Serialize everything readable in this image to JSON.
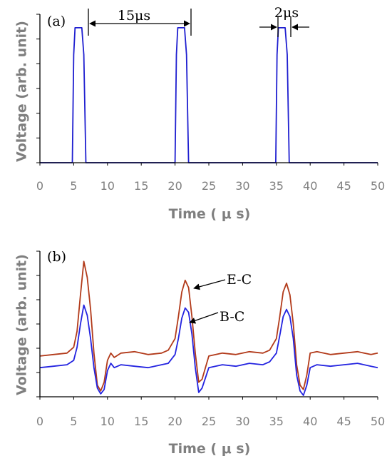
{
  "chart_data": [
    {
      "type": "line",
      "panel_label": "(a)",
      "xlabel": "Time ( μ s)",
      "ylabel": "Voltage (arb. unit)",
      "xlim": [
        0,
        50
      ],
      "xticks": [
        "0",
        "5",
        "10",
        "15",
        "20",
        "25",
        "30",
        "35",
        "40",
        "45",
        "50"
      ],
      "ylim": [
        0,
        1.1
      ],
      "y_tick_labels_shown": false,
      "grid": false,
      "series": [
        {
          "color": "#1f1fd0",
          "x": [
            0,
            4.8,
            5.0,
            5.2,
            6.2,
            6.5,
            6.8,
            20.0,
            20.2,
            20.4,
            21.4,
            21.7,
            22.0,
            34.9,
            35.1,
            35.3,
            36.3,
            36.6,
            36.9,
            50
          ],
          "y": [
            0,
            0,
            0.8,
            1.0,
            1.0,
            0.8,
            0,
            0,
            0.8,
            1.0,
            1.0,
            0.8,
            0,
            0,
            0.8,
            1.0,
            1.0,
            0.8,
            0,
            0
          ]
        }
      ],
      "annotations": [
        {
          "text": "15μs",
          "from_x": 7.0,
          "to_x": 22.0
        },
        {
          "text": "2μs",
          "from_x": 35.1,
          "to_x": 37.0
        }
      ]
    },
    {
      "type": "line",
      "panel_label": "(b)",
      "xlabel": "Time ( μ s)",
      "ylabel": "Voltage (arb. unit)",
      "xlim": [
        0,
        50
      ],
      "xticks": [
        "0",
        "5",
        "10",
        "15",
        "20",
        "25",
        "30",
        "35",
        "40",
        "45",
        "50"
      ],
      "ylim": [
        0,
        1.0
      ],
      "y_tick_labels_shown": false,
      "grid": false,
      "series": [
        {
          "name": "E-C",
          "color": "#b23a1a",
          "x": [
            0,
            2,
            4,
            5,
            5.5,
            6,
            6.5,
            7,
            7.5,
            8,
            8.5,
            9,
            9.5,
            10,
            10.5,
            11,
            12,
            14,
            16,
            18,
            19,
            20,
            20.5,
            21,
            21.5,
            22,
            22.5,
            23,
            23.5,
            24,
            25,
            27,
            29,
            31,
            33,
            34,
            35,
            35.5,
            36,
            36.5,
            37,
            37.5,
            38,
            38.5,
            39,
            39.5,
            40,
            41,
            43,
            45,
            47,
            49,
            50
          ],
          "y": [
            0.28,
            0.29,
            0.3,
            0.34,
            0.45,
            0.7,
            0.93,
            0.82,
            0.6,
            0.3,
            0.08,
            0.04,
            0.1,
            0.25,
            0.3,
            0.27,
            0.3,
            0.31,
            0.29,
            0.3,
            0.32,
            0.4,
            0.55,
            0.72,
            0.8,
            0.75,
            0.55,
            0.3,
            0.1,
            0.12,
            0.28,
            0.3,
            0.29,
            0.31,
            0.3,
            0.32,
            0.4,
            0.55,
            0.72,
            0.78,
            0.7,
            0.5,
            0.22,
            0.08,
            0.05,
            0.15,
            0.3,
            0.31,
            0.29,
            0.3,
            0.31,
            0.29,
            0.3
          ]
        },
        {
          "name": "B-C",
          "color": "#2323e0",
          "x": [
            0,
            2,
            4,
            5,
            5.5,
            6,
            6.5,
            7,
            7.5,
            8,
            8.5,
            9,
            9.5,
            10,
            10.5,
            11,
            12,
            14,
            16,
            18,
            19,
            20,
            20.5,
            21,
            21.5,
            22,
            22.5,
            23,
            23.5,
            24,
            25,
            27,
            29,
            31,
            33,
            34,
            35,
            35.5,
            36,
            36.5,
            37,
            37.5,
            38,
            38.5,
            39,
            39.5,
            40,
            41,
            43,
            45,
            47,
            49,
            50
          ],
          "y": [
            0.2,
            0.21,
            0.22,
            0.25,
            0.34,
            0.5,
            0.63,
            0.56,
            0.4,
            0.2,
            0.06,
            0.02,
            0.05,
            0.18,
            0.23,
            0.2,
            0.22,
            0.21,
            0.2,
            0.22,
            0.23,
            0.29,
            0.4,
            0.54,
            0.61,
            0.58,
            0.43,
            0.2,
            0.03,
            0.06,
            0.2,
            0.22,
            0.21,
            0.23,
            0.22,
            0.24,
            0.3,
            0.42,
            0.55,
            0.6,
            0.55,
            0.4,
            0.15,
            0.04,
            0.01,
            0.08,
            0.2,
            0.22,
            0.21,
            0.22,
            0.23,
            0.21,
            0.2
          ]
        }
      ],
      "annotations": [
        {
          "text": "E-C",
          "target_series": "E-C",
          "target_x": 22.2,
          "target_y": 0.79
        },
        {
          "text": "B-C",
          "target_series": "B-C",
          "target_x": 22.0,
          "target_y": 0.6
        }
      ]
    }
  ]
}
